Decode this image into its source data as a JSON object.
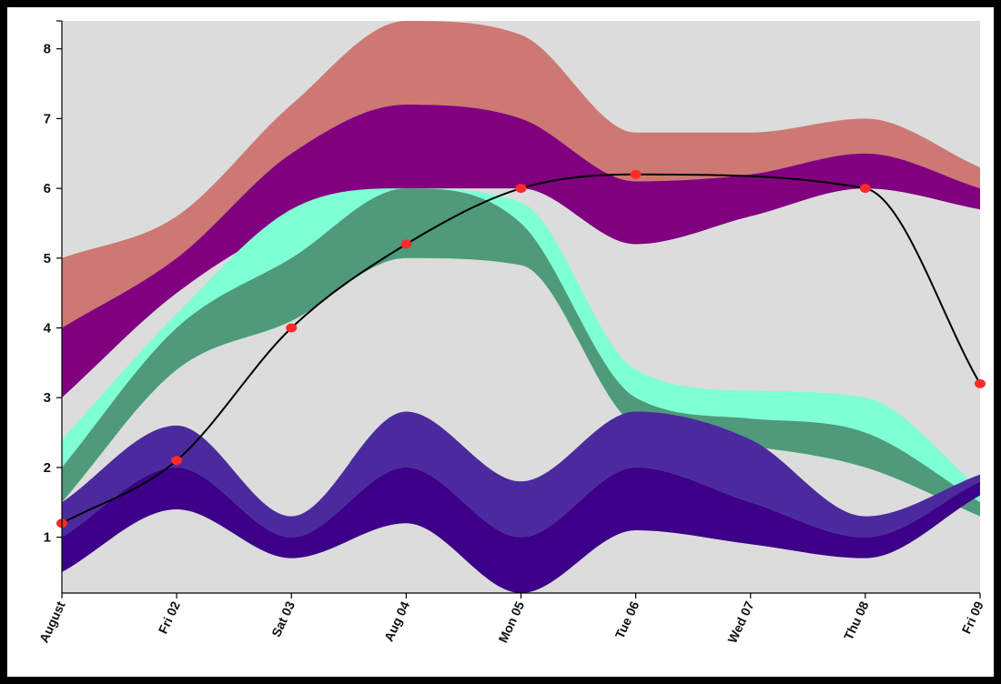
{
  "chart_data": {
    "type": "area",
    "x_labels": [
      "August",
      "Fri 02",
      "Sat 03",
      "Aug 04",
      "Mon 05",
      "Tue 06",
      "Wed 07",
      "Thu 08",
      "Fri 09"
    ],
    "x_count": 9,
    "ylim": [
      0.2,
      8.4
    ],
    "yticks": [
      1,
      2,
      3,
      4,
      5,
      6,
      7,
      8
    ],
    "background_color": "#dcdcdc",
    "bands": [
      {
        "color": "#cd7872",
        "upper": [
          [
            0,
            5.0
          ],
          [
            1,
            5.6
          ],
          [
            2,
            7.2
          ],
          [
            3,
            8.4
          ],
          [
            4,
            8.2
          ],
          [
            5,
            6.8
          ],
          [
            6,
            6.8
          ],
          [
            7,
            7.0
          ],
          [
            8,
            6.3
          ]
        ],
        "lower": [
          [
            0,
            4.0
          ],
          [
            1,
            5.0
          ],
          [
            2,
            6.5
          ],
          [
            3,
            7.2
          ],
          [
            4,
            7.0
          ],
          [
            5,
            6.1
          ],
          [
            6,
            6.2
          ],
          [
            7,
            6.5
          ],
          [
            8,
            6.0
          ]
        ]
      },
      {
        "color": "#800080",
        "upper": [
          [
            0,
            4.0
          ],
          [
            1,
            5.0
          ],
          [
            2,
            6.5
          ],
          [
            3,
            7.2
          ],
          [
            4,
            7.0
          ],
          [
            5,
            6.1
          ],
          [
            6,
            6.2
          ],
          [
            7,
            6.5
          ],
          [
            8,
            6.0
          ]
        ],
        "lower": [
          [
            0,
            3.0
          ],
          [
            1,
            4.5
          ],
          [
            2,
            5.5
          ],
          [
            3,
            6.0
          ],
          [
            4,
            6.0
          ],
          [
            5,
            5.2
          ],
          [
            6,
            5.6
          ],
          [
            7,
            6.0
          ],
          [
            8,
            5.7
          ]
        ]
      },
      {
        "color": "#7fffd4",
        "upper": [
          [
            0,
            2.4
          ],
          [
            1,
            4.2
          ],
          [
            2,
            5.7
          ],
          [
            3,
            6.0
          ],
          [
            4,
            5.8
          ],
          [
            5,
            3.4
          ],
          [
            6,
            3.1
          ],
          [
            7,
            3.0
          ],
          [
            8,
            1.7
          ]
        ],
        "lower": [
          [
            0,
            1.5
          ],
          [
            1,
            3.4
          ],
          [
            2,
            4.1
          ],
          [
            3,
            5.0
          ],
          [
            4,
            4.9
          ],
          [
            5,
            2.6
          ],
          [
            6,
            2.3
          ],
          [
            7,
            2.0
          ],
          [
            8,
            1.3
          ]
        ]
      },
      {
        "color": "#4e9a7a",
        "upper": [
          [
            0,
            2.0
          ],
          [
            1,
            4.0
          ],
          [
            2,
            5.0
          ],
          [
            3,
            6.0
          ],
          [
            4,
            5.5
          ],
          [
            5,
            3.0
          ],
          [
            6,
            2.7
          ],
          [
            7,
            2.5
          ],
          [
            8,
            1.5
          ]
        ],
        "lower": [
          [
            0,
            1.5
          ],
          [
            1,
            3.4
          ],
          [
            2,
            4.1
          ],
          [
            3,
            5.0
          ],
          [
            4,
            4.9
          ],
          [
            5,
            2.6
          ],
          [
            6,
            2.3
          ],
          [
            7,
            2.0
          ],
          [
            8,
            1.3
          ]
        ]
      },
      {
        "color": "#4b2a9e",
        "upper": [
          [
            0,
            1.5
          ],
          [
            1,
            2.6
          ],
          [
            2,
            1.3
          ],
          [
            3,
            2.8
          ],
          [
            4,
            1.8
          ],
          [
            5,
            2.8
          ],
          [
            6,
            2.4
          ],
          [
            7,
            1.3
          ],
          [
            8,
            1.9
          ]
        ],
        "lower": [
          [
            0,
            1.0
          ],
          [
            1,
            2.0
          ],
          [
            2,
            1.0
          ],
          [
            3,
            2.0
          ],
          [
            4,
            1.0
          ],
          [
            5,
            2.0
          ],
          [
            6,
            1.5
          ],
          [
            7,
            1.0
          ],
          [
            8,
            1.8
          ]
        ]
      },
      {
        "color": "#3d0088",
        "upper": [
          [
            0,
            1.0
          ],
          [
            1,
            2.0
          ],
          [
            2,
            1.0
          ],
          [
            3,
            2.0
          ],
          [
            4,
            1.0
          ],
          [
            5,
            2.0
          ],
          [
            6,
            1.5
          ],
          [
            7,
            1.0
          ],
          [
            8,
            1.8
          ]
        ],
        "lower": [
          [
            0,
            0.5
          ],
          [
            1,
            1.4
          ],
          [
            2,
            0.7
          ],
          [
            3,
            1.2
          ],
          [
            4,
            0.2
          ],
          [
            5,
            1.1
          ],
          [
            6,
            0.9
          ],
          [
            7,
            0.7
          ],
          [
            8,
            1.6
          ]
        ]
      }
    ],
    "line": {
      "color": "#000000",
      "marker_color": "#ff2a2a",
      "points": [
        [
          0,
          1.2
        ],
        [
          1,
          2.1
        ],
        [
          2,
          4.0
        ],
        [
          3,
          5.2
        ],
        [
          4,
          6.0
        ],
        [
          5,
          6.2
        ],
        [
          7,
          6.0
        ],
        [
          8,
          3.2
        ]
      ]
    }
  }
}
